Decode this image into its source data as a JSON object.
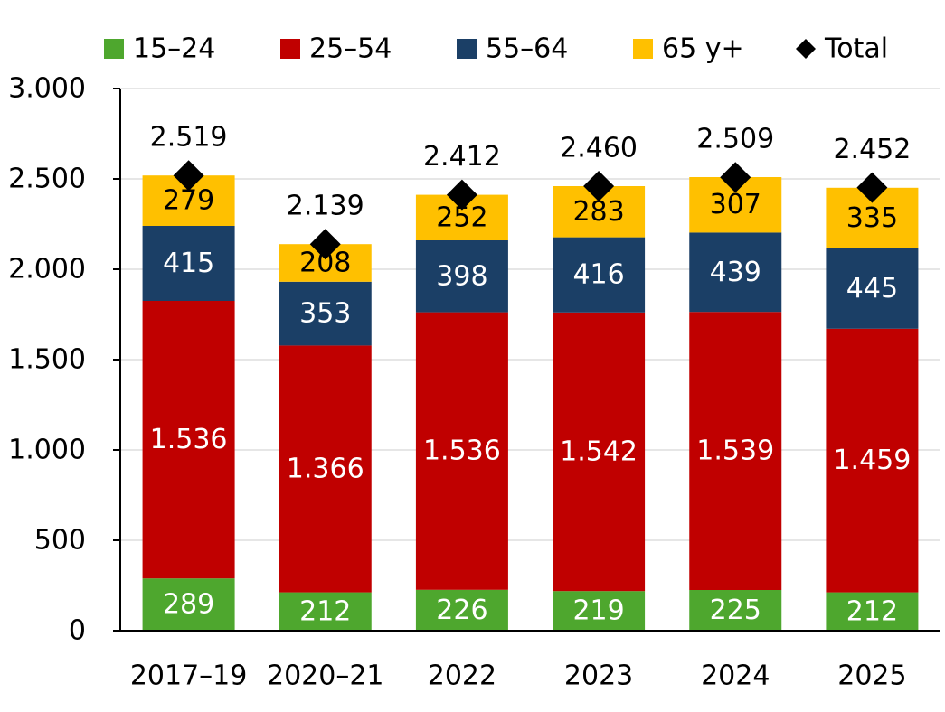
{
  "chart_data": {
    "type": "bar",
    "stacked": true,
    "title": "",
    "xlabel": "",
    "ylabel": "",
    "ylim": [
      0,
      3000
    ],
    "yticks": [
      0,
      500,
      1000,
      1500,
      2000,
      2500,
      3000
    ],
    "ytick_labels": [
      "0",
      "500",
      "1.000",
      "1.500",
      "2.000",
      "2.500",
      "3.000"
    ],
    "grid": true,
    "legend_position": "top",
    "categories": [
      "2017–19",
      "2020–21",
      "2022",
      "2023",
      "2024",
      "2025"
    ],
    "series": [
      {
        "name": "15–24",
        "color": "#4EA72E",
        "label_color": "#ffffff",
        "values": [
          289,
          212,
          226,
          219,
          225,
          212
        ],
        "labels": [
          "289",
          "212",
          "226",
          "219",
          "225",
          "212"
        ]
      },
      {
        "name": "25–54",
        "color": "#C00000",
        "label_color": "#ffffff",
        "values": [
          1536,
          1366,
          1536,
          1542,
          1539,
          1459
        ],
        "labels": [
          "1.536",
          "1.366",
          "1.536",
          "1.542",
          "1.539",
          "1.459"
        ]
      },
      {
        "name": "55–64",
        "color": "#1B3F66",
        "label_color": "#ffffff",
        "values": [
          415,
          353,
          398,
          416,
          439,
          445
        ],
        "labels": [
          "415",
          "353",
          "398",
          "416",
          "439",
          "445"
        ]
      },
      {
        "name": "65 y+",
        "color": "#FFC000",
        "label_color": "#000000",
        "values": [
          279,
          208,
          252,
          283,
          307,
          335
        ],
        "labels": [
          "279",
          "208",
          "252",
          "283",
          "307",
          "335"
        ]
      }
    ],
    "total": {
      "name": "Total",
      "color": "#000000",
      "marker": "diamond",
      "values": [
        2519,
        2139,
        2412,
        2460,
        2509,
        2452
      ],
      "labels": [
        "2.519",
        "2.139",
        "2.412",
        "2.460",
        "2.509",
        "2.452"
      ]
    }
  }
}
